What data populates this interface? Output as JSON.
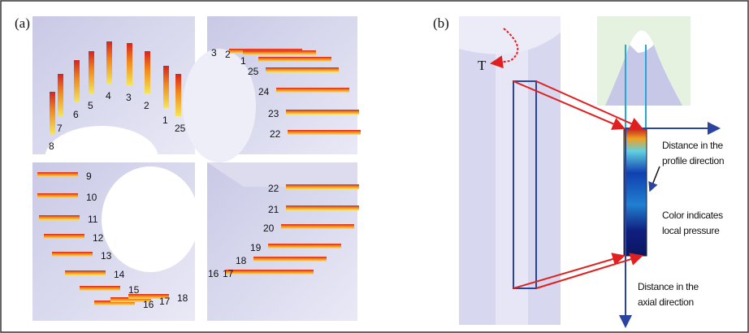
{
  "panel_a": {
    "label": "(a)",
    "views": [
      {
        "tooth_labels": [
          "8",
          "7",
          "6",
          "5",
          "4",
          "3",
          "2",
          "1",
          "25"
        ]
      },
      {
        "tooth_labels": [
          "3",
          "2",
          "1",
          "25",
          "24",
          "23",
          "22"
        ]
      },
      {
        "tooth_labels": [
          "9",
          "10",
          "11",
          "12",
          "13",
          "14",
          "15",
          "16",
          "17",
          "18"
        ]
      },
      {
        "tooth_labels": [
          "22",
          "21",
          "20",
          "19",
          "18",
          "17",
          "16"
        ]
      }
    ]
  },
  "panel_b": {
    "label": "(b)",
    "torque_label": "T",
    "annotations": [
      "Distance in the profile direction",
      "Color indicates local pressure",
      "Distance in the axial direction"
    ]
  }
}
